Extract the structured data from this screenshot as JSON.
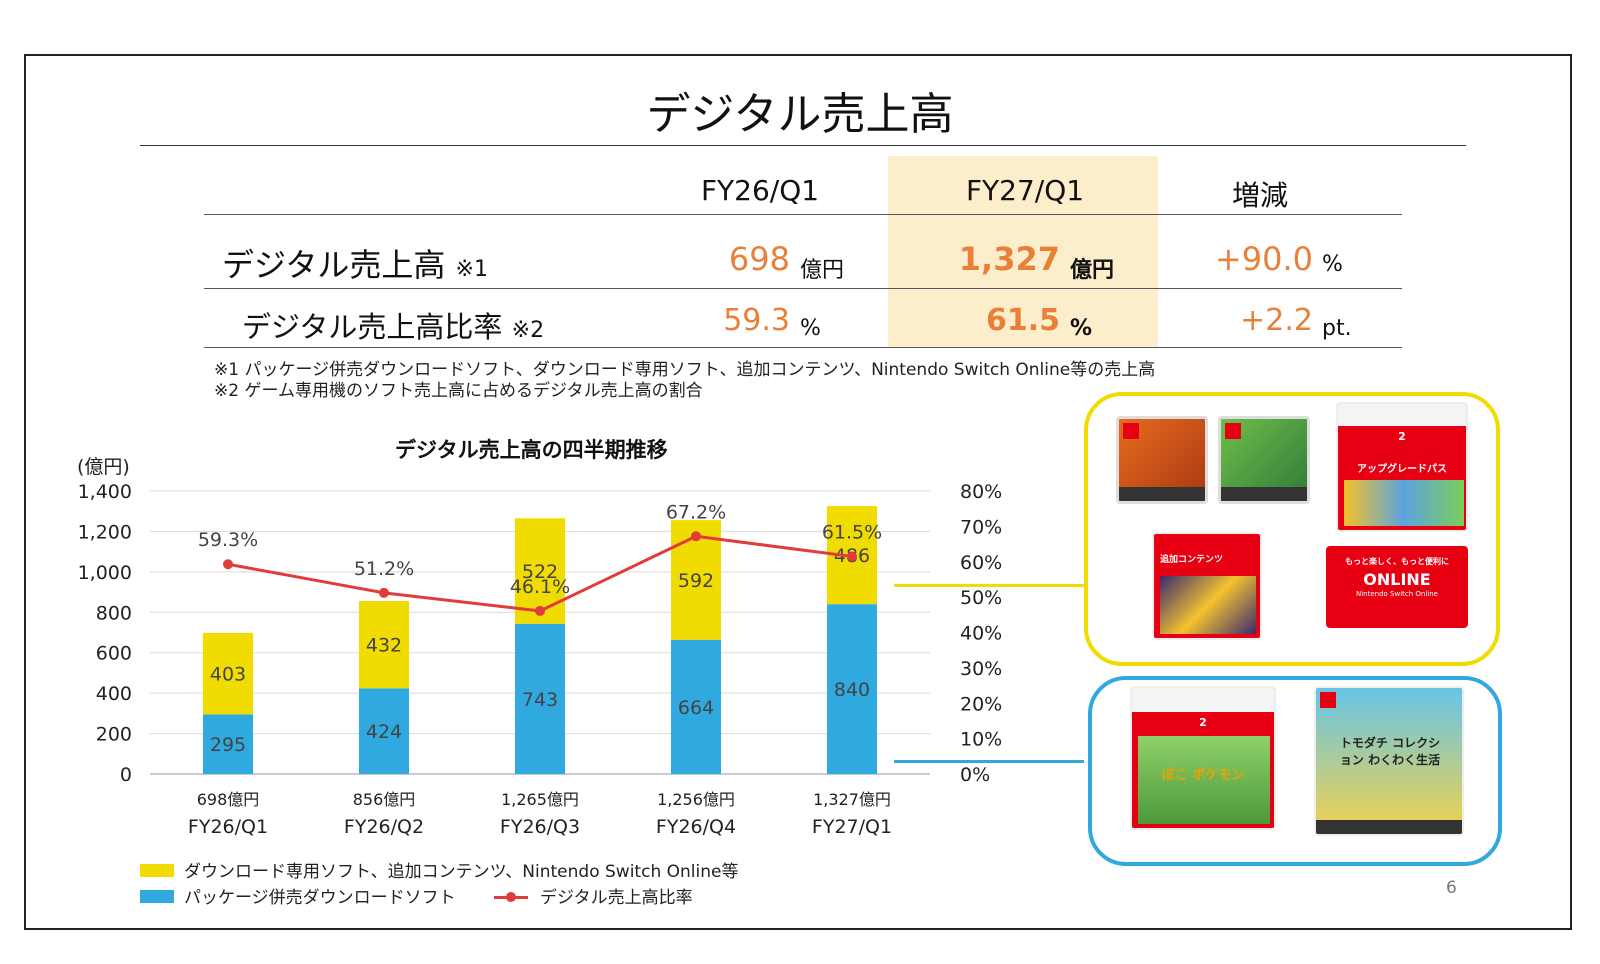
{
  "page": {
    "title": "デジタル売上高",
    "page_number": "6"
  },
  "summary_table": {
    "headers": [
      "FY26/Q1",
      "FY27/Q1",
      "増減"
    ],
    "rows": [
      {
        "label": "デジタル売上高",
        "note": "※1",
        "fy26": "698",
        "fy26_unit": "億円",
        "fy27": "1,327",
        "fy27_unit": "億円",
        "change": "+90.0",
        "change_unit": "%"
      },
      {
        "label": "デジタル売上高比率",
        "note": "※2",
        "fy26": "59.3",
        "fy26_unit": "%",
        "fy27": "61.5",
        "fy27_unit": "%",
        "change": "+2.2",
        "change_unit": "pt."
      }
    ],
    "footnotes": [
      "※1 パッケージ併売ダウンロードソフト、ダウンロード専用ソフト、追加コンテンツ、Nintendo Switch Online等の売上高",
      "※2 ゲーム専用機のソフト売上高に占めるデジタル売上高の割合"
    ]
  },
  "chart_data": {
    "type": "bar",
    "stacked": true,
    "title": "デジタル売上高の四半期推移",
    "y_unit": "(億円)",
    "categories": [
      "FY26/Q1",
      "FY26/Q2",
      "FY26/Q3",
      "FY26/Q4",
      "FY27/Q1"
    ],
    "totals": [
      "698億円",
      "856億円",
      "1,265億円",
      "1,256億円",
      "1,327億円"
    ],
    "series": [
      {
        "name": "パッケージ併売ダウンロードソフト",
        "color": "#2fa9df",
        "values": [
          295,
          424,
          743,
          664,
          840
        ]
      },
      {
        "name": "ダウンロード専用ソフト、追加コンテンツ、Nintendo Switch Online等",
        "color": "#f0dc00",
        "values": [
          403,
          432,
          522,
          592,
          486
        ]
      }
    ],
    "line_series": {
      "name": "デジタル売上高比率",
      "color": "#e03c3c",
      "values": [
        59.3,
        51.2,
        46.1,
        67.2,
        61.5
      ],
      "labels": [
        "59.3%",
        "51.2%",
        "46.1%",
        "67.2%",
        "61.5%"
      ]
    },
    "ylim": [
      0,
      1400
    ],
    "yticks": [
      "0",
      "200",
      "400",
      "600",
      "800",
      "1,000",
      "1,200",
      "1,400"
    ],
    "y2lim": [
      0,
      80
    ],
    "y2ticks": [
      "0%",
      "10%",
      "20%",
      "30%",
      "40%",
      "50%",
      "60%",
      "70%",
      "80%"
    ],
    "grid": true,
    "legend": "bottom-left"
  },
  "product_images": {
    "yellow_group_color": "#f0dc00",
    "blue_group_color": "#2fa9df",
    "yellow_items": [
      {
        "kind": "card-orange",
        "text": "SWITCH"
      },
      {
        "kind": "card-green",
        "text": "SWITCH"
      },
      {
        "kind": "upgrade-pass",
        "badge": "2",
        "text": "アップグレードパス"
      },
      {
        "kind": "dlc-card",
        "text": "追加コンテンツ"
      },
      {
        "kind": "nso-card",
        "text_top": "もっと楽しく、もっと便利に",
        "text_main": "ONLINE",
        "text_sub": "Nintendo Switch Online"
      }
    ],
    "blue_items": [
      {
        "kind": "download-card",
        "badge": "2",
        "text": "ぽこ ポケモン"
      },
      {
        "kind": "tomodachi",
        "text": "トモダチ コレクション わくわく生活"
      }
    ]
  }
}
